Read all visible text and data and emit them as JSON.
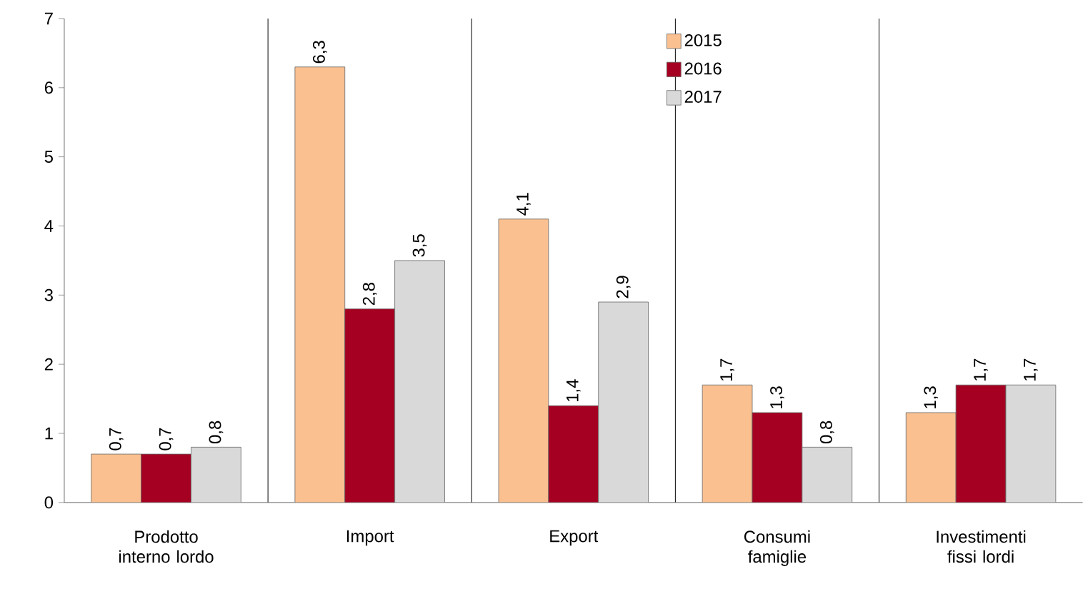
{
  "chart_data": {
    "type": "bar",
    "categories": [
      "Prodotto interno lordo",
      "Import",
      "Export",
      "Consumi famiglie",
      "Investimenti fissi lordi"
    ],
    "series": [
      {
        "name": "2015",
        "color": "#fac090",
        "values": [
          0.7,
          6.3,
          4.1,
          1.7,
          1.3
        ],
        "value_labels": [
          "0,7",
          "6,3",
          "4,1",
          "1,7",
          "1,3"
        ]
      },
      {
        "name": "2016",
        "color": "#a50021",
        "values": [
          0.7,
          2.8,
          1.4,
          1.3,
          1.7
        ],
        "value_labels": [
          "0,7",
          "2,8",
          "1,4",
          "1,3",
          "1,7"
        ]
      },
      {
        "name": "2017",
        "color": "#d9d9d9",
        "values": [
          0.8,
          3.5,
          2.9,
          0.8,
          1.7
        ],
        "value_labels": [
          "0,8",
          "3,5",
          "2,9",
          "0,8",
          "1,7"
        ]
      }
    ],
    "ylim": [
      0,
      7
    ],
    "yticks": [
      0,
      1,
      2,
      3,
      4,
      5,
      6,
      7
    ],
    "grid": "x",
    "legend": "top"
  }
}
